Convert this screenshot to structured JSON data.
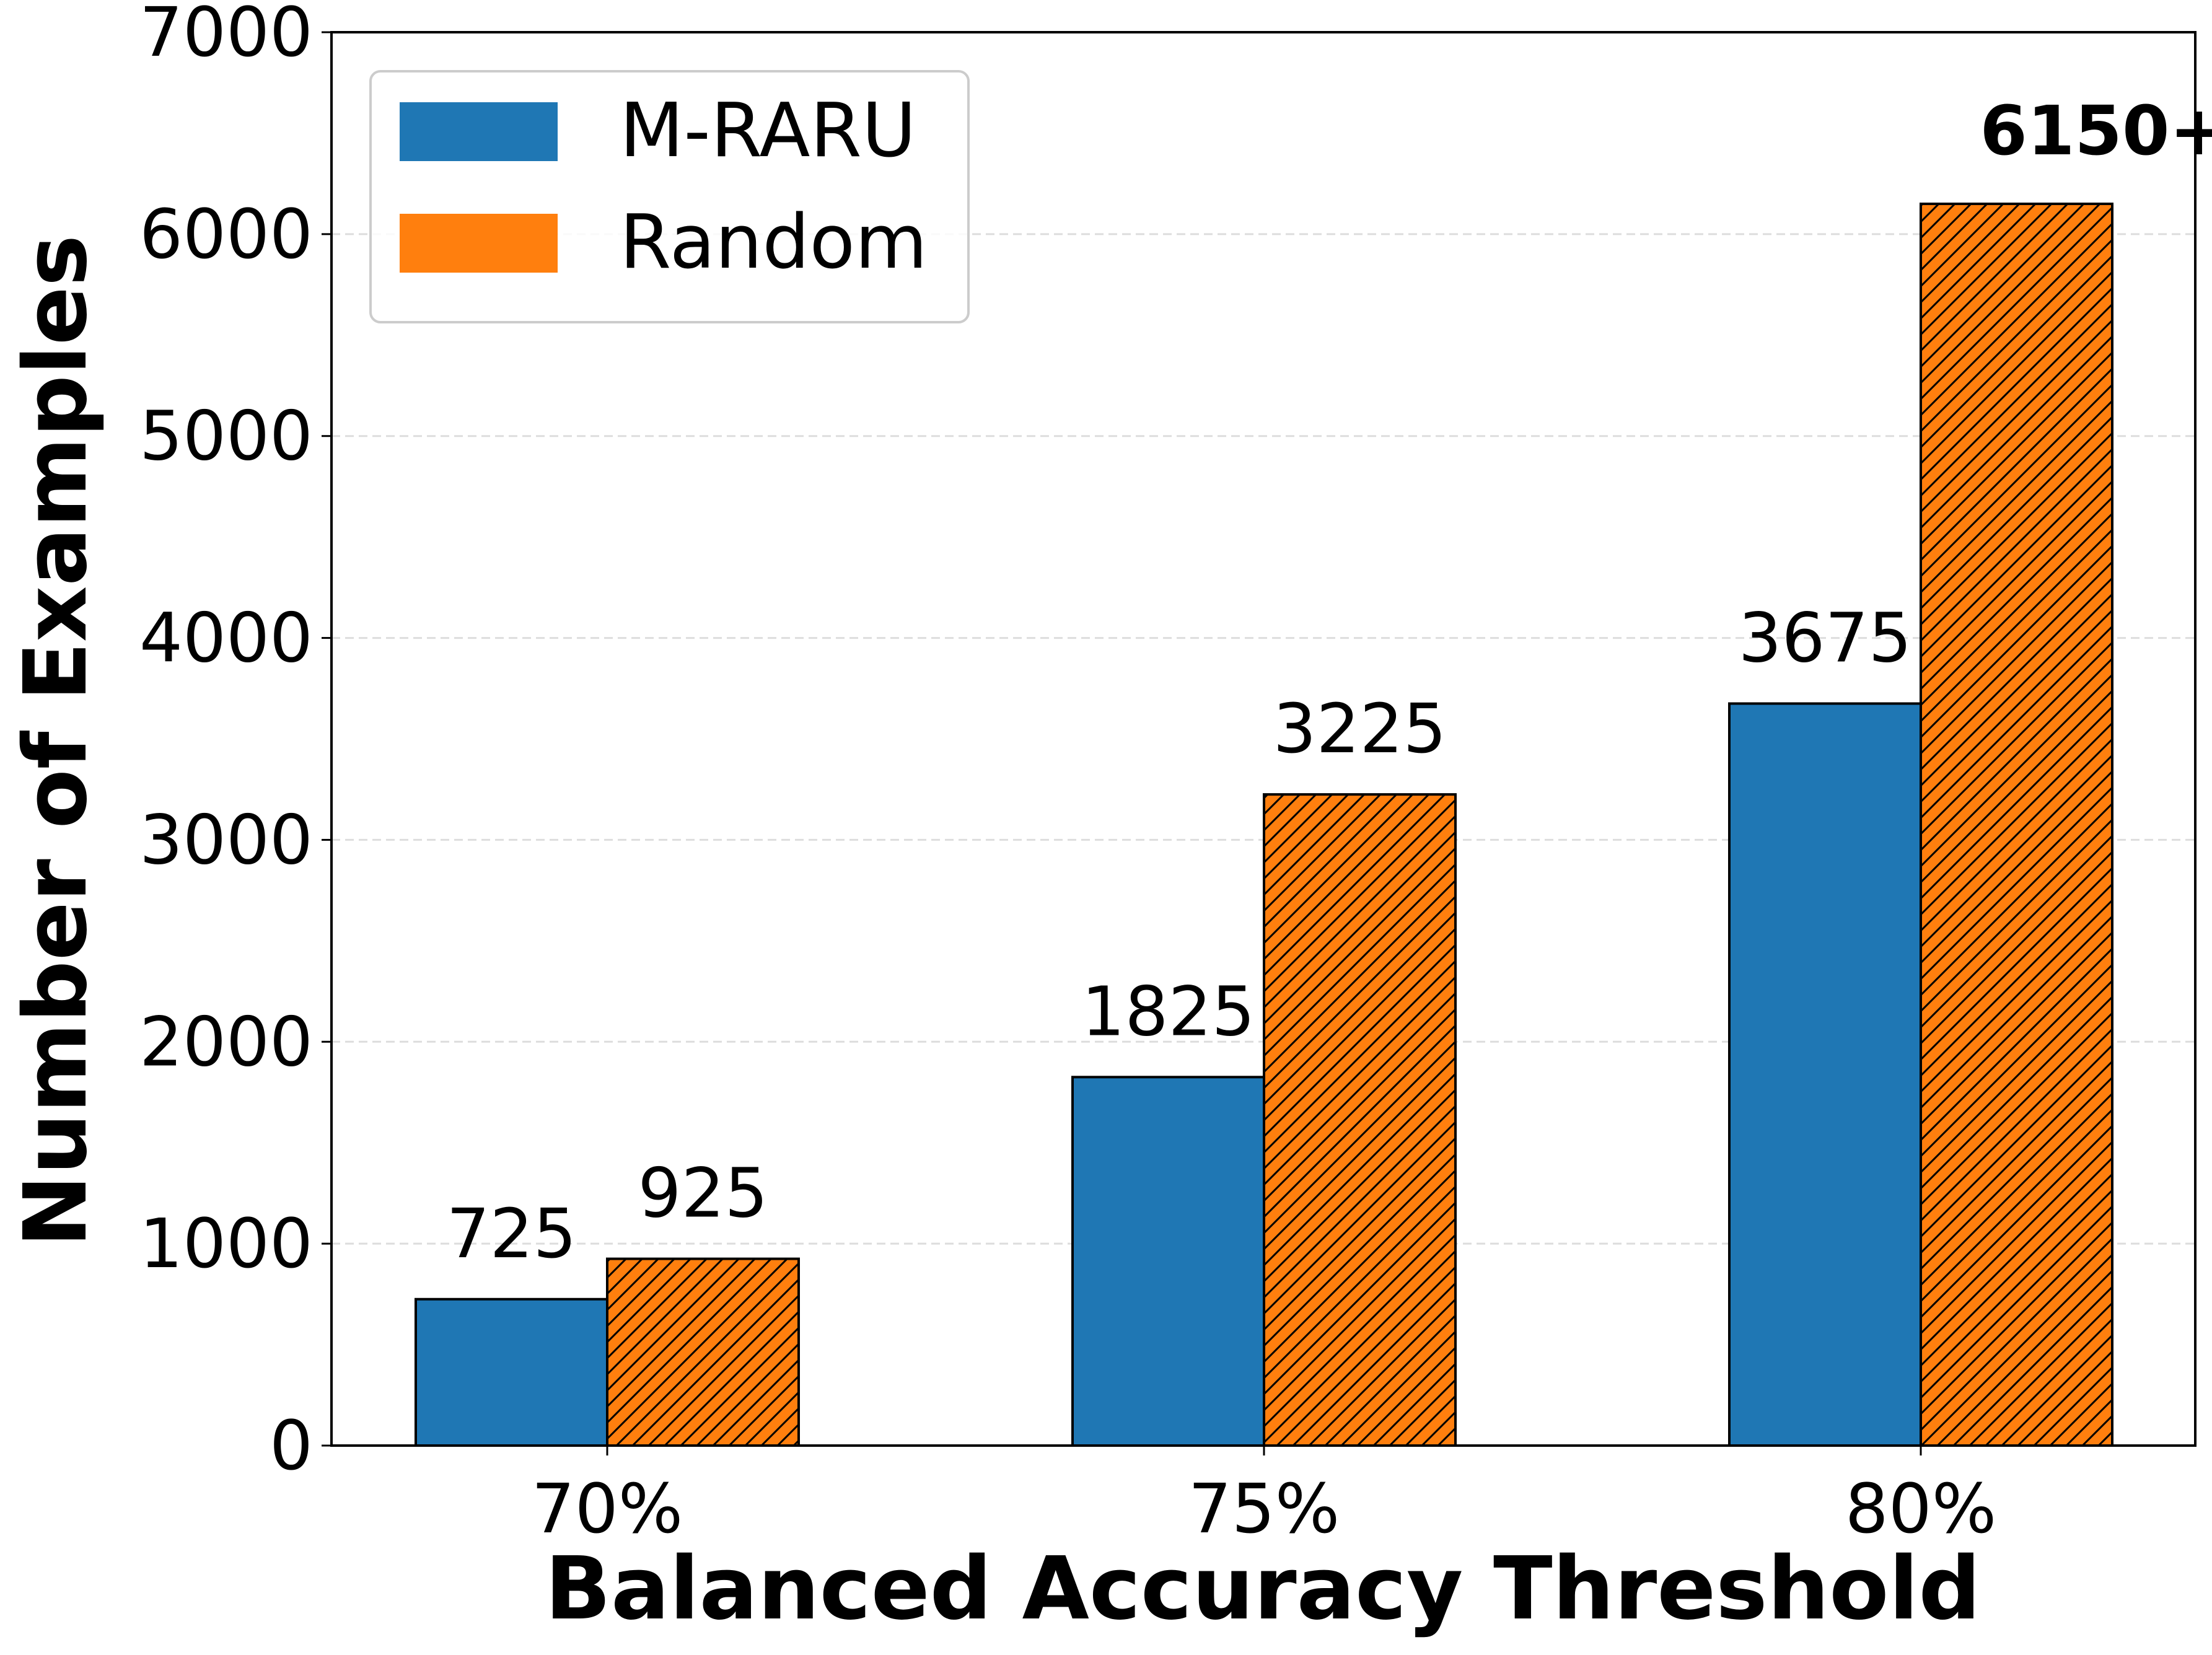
{
  "chart_data": {
    "type": "bar",
    "xlabel": "Balanced Accuracy Threshold",
    "ylabel": "Number of Examples",
    "categories": [
      "70%",
      "75%",
      "80%"
    ],
    "ylim": [
      0,
      7000
    ],
    "yticks": [
      0,
      1000,
      2000,
      3000,
      4000,
      5000,
      6000,
      7000
    ],
    "grid": "horizontal dashed",
    "legend_position": "top-left",
    "series": [
      {
        "name": "M-RARU",
        "color": "#1f77b4",
        "hatch": "none",
        "values": [
          725,
          1825,
          3675
        ],
        "labels": [
          "725",
          "1825",
          "3675"
        ]
      },
      {
        "name": "Random",
        "color": "#ff7f0e",
        "hatch": "diagonal",
        "values": [
          925,
          3225,
          6150
        ],
        "labels": [
          "925",
          "3225",
          "6150+"
        ]
      }
    ]
  }
}
